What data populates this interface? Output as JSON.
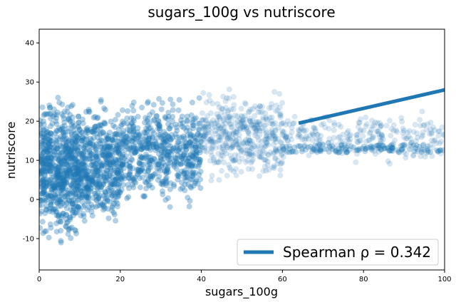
{
  "chart_data": {
    "type": "scatter",
    "title": "sugars_100g vs nutriscore",
    "xlabel": "sugars_100g",
    "ylabel": "nutriscore",
    "xlim": [
      0,
      100
    ],
    "ylim": [
      -18,
      43.5
    ],
    "x_ticks": [
      0,
      20,
      40,
      60,
      80,
      100
    ],
    "y_ticks": [
      -10,
      0,
      10,
      20,
      30,
      40
    ],
    "grid": false,
    "legend": {
      "placement": "lower-right",
      "entries": [
        {
          "label": "Spearman ρ = 0.342",
          "type": "line"
        }
      ]
    },
    "colors": {
      "series": "#1f77b4"
    },
    "series": [
      {
        "marker": "circle",
        "approximate_point_density": [
          {
            "x_range": [
              0,
              10
            ],
            "y_range": [
              -14,
              29
            ]
          },
          {
            "x_range": [
              10,
              20
            ],
            "y_range": [
              -11,
              28
            ]
          },
          {
            "x_range": [
              20,
              40
            ],
            "y_range": [
              -4,
              29
            ]
          },
          {
            "x_range": [
              40,
              60
            ],
            "y_range": [
              2,
              30
            ]
          },
          {
            "x_range": [
              60,
              100
            ],
            "y_range": [
              8,
              24
            ]
          }
        ],
        "dense_band_at_x_100": [
          10,
          15
        ]
      }
    ],
    "trend_line": {
      "x": [
        64,
        100
      ],
      "y": [
        19.5,
        28
      ]
    }
  }
}
